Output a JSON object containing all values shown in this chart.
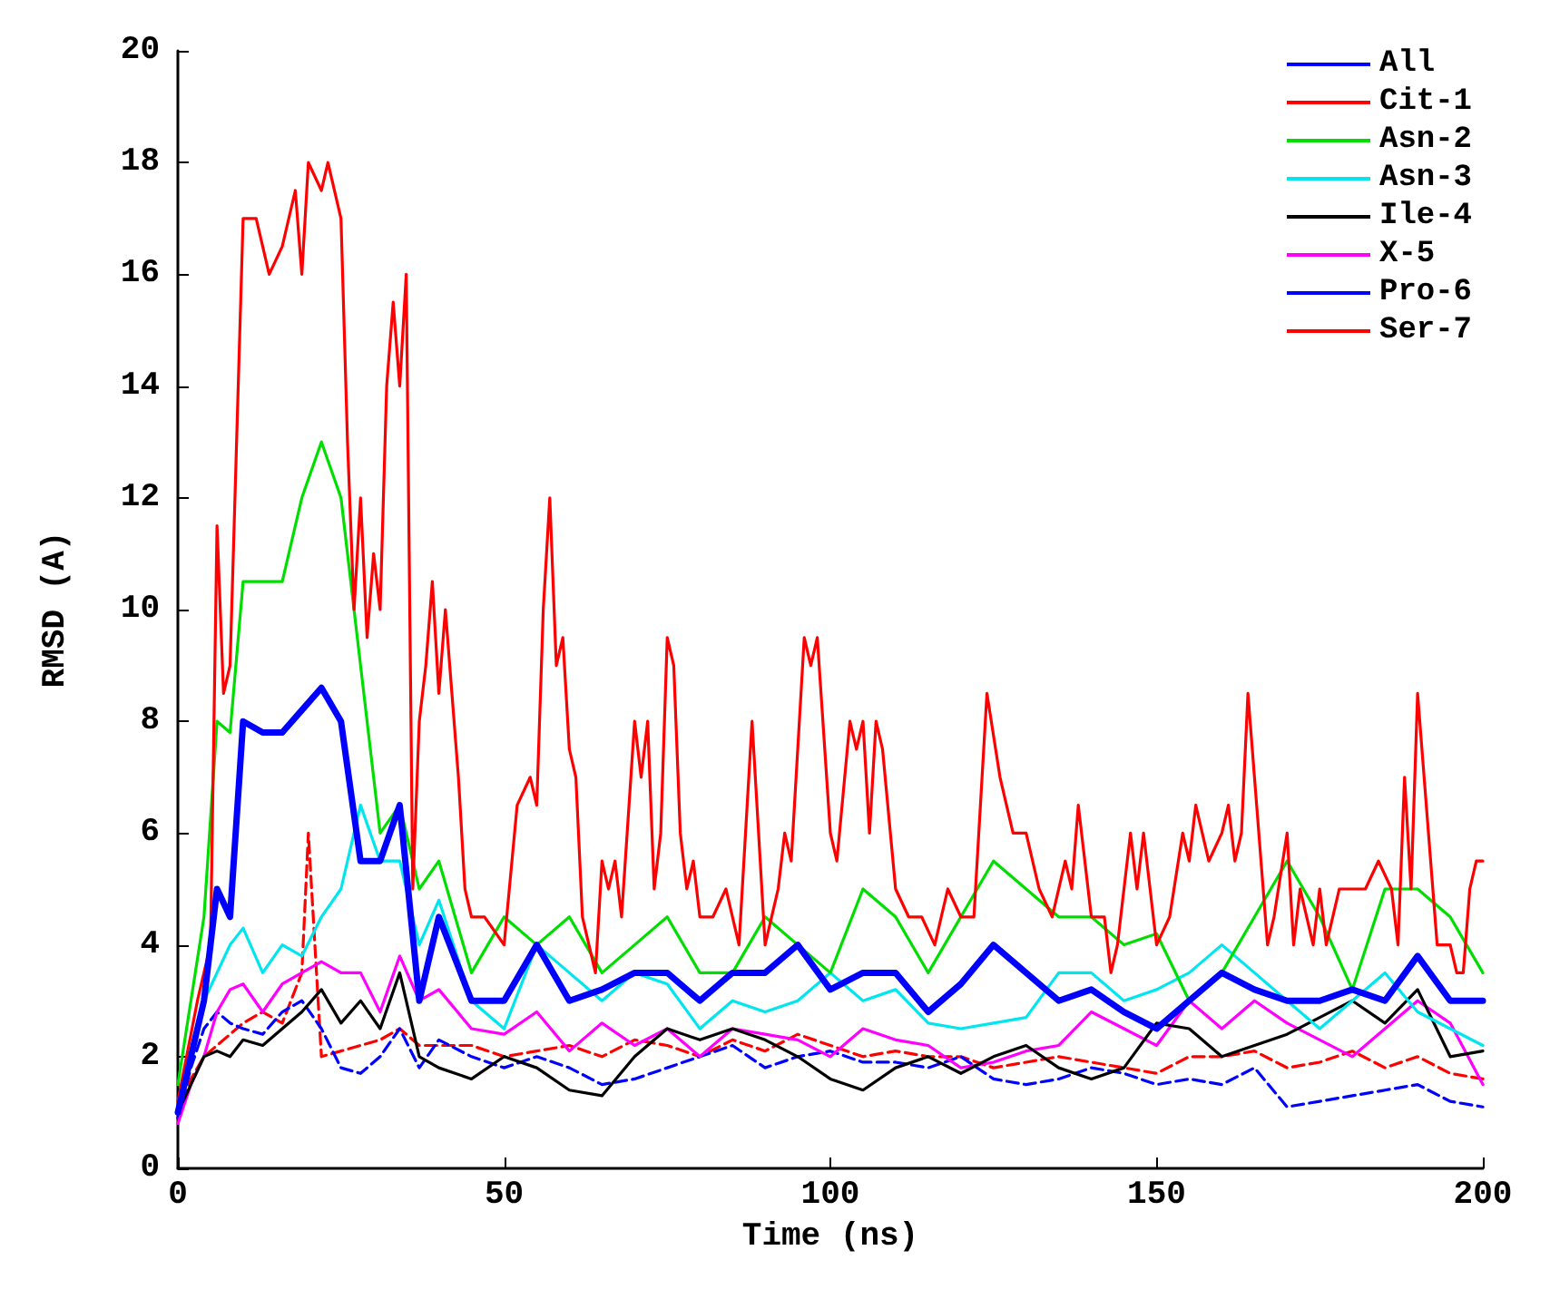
{
  "chart_data": {
    "type": "line",
    "xlabel": "Time (ns)",
    "ylabel": "RMSD (A)",
    "xlim": [
      0,
      200
    ],
    "xticks": [
      0,
      50,
      100,
      150,
      200
    ],
    "ylim": [
      0,
      20
    ],
    "yticks": [
      0,
      2,
      4,
      6,
      8,
      10,
      12,
      14,
      16,
      18,
      20
    ],
    "grid": false,
    "legend": "top right",
    "marker": "none",
    "x": [
      0,
      2,
      4,
      6,
      8,
      10,
      13,
      16,
      19,
      22,
      25,
      28,
      31,
      34,
      37,
      40,
      45,
      50,
      55,
      60,
      65,
      70,
      75,
      80,
      85,
      90,
      95,
      100,
      105,
      110,
      115,
      120,
      125,
      130,
      135,
      140,
      145,
      150,
      155,
      160,
      165,
      170,
      175,
      180,
      185,
      190,
      195,
      200
    ],
    "series": [
      {
        "name": "All",
        "color": "#0000ff",
        "line_style": "solid",
        "values": [
          1,
          2,
          3,
          5,
          4.5,
          8,
          7.8,
          7.8,
          8.2,
          8.6,
          8,
          5.5,
          5.5,
          6.5,
          3,
          4.5,
          3,
          3,
          4,
          3,
          3.2,
          3.5,
          3.5,
          3,
          3.5,
          3.5,
          4,
          3.2,
          3.5,
          3.5,
          2.8,
          3.3,
          4,
          3.5,
          3,
          3.2,
          2.8,
          2.5,
          3,
          3.5,
          3.2,
          3,
          3,
          3.2,
          3,
          3.8,
          3,
          3
        ]
      },
      {
        "name": "Cit-1",
        "color": "#ff0000",
        "line_style": "solid",
        "x": [
          0,
          3,
          5,
          6,
          7,
          8,
          10,
          12,
          14,
          16,
          18,
          19,
          20,
          22,
          23,
          25,
          26,
          27,
          28,
          29,
          30,
          31,
          32,
          33,
          34,
          35,
          36,
          37,
          38,
          39,
          40,
          41,
          43,
          44,
          45,
          47,
          50,
          52,
          54,
          55,
          56,
          57,
          58,
          59,
          60,
          61,
          62,
          64,
          65,
          66,
          67,
          68,
          70,
          71,
          72,
          73,
          74,
          75,
          76,
          77,
          78,
          79,
          80,
          82,
          84,
          86,
          88,
          90,
          92,
          93,
          94,
          96,
          97,
          98,
          100,
          101,
          103,
          104,
          105,
          106,
          107,
          108,
          110,
          112,
          114,
          116,
          118,
          120,
          122,
          124,
          126,
          128,
          130,
          132,
          134,
          136,
          137,
          138,
          140,
          142,
          143,
          144,
          146,
          147,
          148,
          150,
          152,
          154,
          155,
          156,
          158,
          160,
          161,
          162,
          163,
          164,
          165,
          166,
          167,
          168,
          170,
          171,
          172,
          174,
          175,
          176,
          178,
          180,
          182,
          184,
          186,
          187,
          188,
          189,
          190,
          191,
          192,
          193,
          195,
          196,
          197,
          198,
          199,
          200
        ],
        "values": [
          1.2,
          3,
          4,
          11.5,
          8.5,
          9,
          17,
          17,
          16,
          16.5,
          17.5,
          16,
          18,
          17.5,
          18,
          17,
          13,
          10,
          12,
          9.5,
          11,
          10,
          14,
          15.5,
          14,
          16,
          5,
          8,
          9,
          10.5,
          8.5,
          10,
          7,
          5,
          4.5,
          4.5,
          4,
          6.5,
          7,
          6.5,
          10,
          12,
          9,
          9.5,
          7.5,
          7,
          4.5,
          3.5,
          5.5,
          5,
          5.5,
          4.5,
          8,
          7,
          8,
          5,
          6,
          9.5,
          9,
          6,
          5,
          5.5,
          4.5,
          4.5,
          5,
          4,
          8,
          4,
          5,
          6,
          5.5,
          9.5,
          9,
          9.5,
          6,
          5.5,
          8,
          7.5,
          8,
          6,
          8,
          7.5,
          5,
          4.5,
          4.5,
          4,
          5,
          4.5,
          4.5,
          8.5,
          7,
          6,
          6,
          5,
          4.5,
          5.5,
          5,
          6.5,
          4.5,
          4.5,
          3.5,
          4,
          6,
          5,
          6,
          4,
          4.5,
          6,
          5.5,
          6.5,
          5.5,
          6,
          6.5,
          5.5,
          6,
          8.5,
          7,
          5.5,
          4,
          4.5,
          6,
          4,
          5,
          4,
          5,
          4,
          5,
          5,
          5,
          5.5,
          5,
          4,
          7,
          5,
          8.5,
          7,
          5.5,
          4,
          4,
          3.5,
          3.5,
          5,
          5.5,
          5.5
        ]
      },
      {
        "name": "Asn-2",
        "color": "#00dd00",
        "line_style": "solid",
        "values": [
          1.5,
          3,
          4.5,
          8,
          7.8,
          10.5,
          10.5,
          10.5,
          12,
          13,
          12,
          9,
          6,
          6.5,
          5,
          5.5,
          3.5,
          4.5,
          4,
          4.5,
          3.5,
          4,
          4.5,
          3.5,
          3.5,
          4.5,
          4,
          3.5,
          5,
          4.5,
          3.5,
          4.5,
          5.5,
          5,
          4.5,
          4.5,
          4,
          4.2,
          3,
          3.5,
          4.5,
          5.5,
          4.5,
          3.2,
          5,
          5,
          4.5,
          3.5
        ]
      },
      {
        "name": "Asn-3",
        "color": "#00e5ee",
        "line_style": "solid",
        "values": [
          1,
          2,
          3,
          3.5,
          4,
          4.3,
          3.5,
          4,
          3.8,
          4.5,
          5,
          6.5,
          5.5,
          5.5,
          4,
          4.8,
          3,
          2.5,
          4,
          3.5,
          3,
          3.5,
          3.3,
          2.5,
          3,
          2.8,
          3,
          3.5,
          3,
          3.2,
          2.6,
          2.5,
          2.6,
          2.7,
          3.5,
          3.5,
          3,
          3.2,
          3.5,
          4,
          3.5,
          3,
          2.5,
          3,
          3.5,
          2.8,
          2.5,
          2.2
        ]
      },
      {
        "name": "Ile-4",
        "color": "#000000",
        "line_style": "solid",
        "values": [
          1,
          1.5,
          2,
          2.1,
          2,
          2.3,
          2.2,
          2.5,
          2.8,
          3.2,
          2.6,
          3,
          2.5,
          3.5,
          2,
          1.8,
          1.6,
          2,
          1.8,
          1.4,
          1.3,
          2,
          2.5,
          2.3,
          2.5,
          2.3,
          2,
          1.6,
          1.4,
          1.8,
          2,
          1.7,
          2,
          2.2,
          1.8,
          1.6,
          1.8,
          2.6,
          2.5,
          2,
          2.2,
          2.4,
          2.7,
          3,
          2.6,
          3.2,
          2,
          2.1
        ]
      },
      {
        "name": "X-5",
        "color": "#ff00ff",
        "line_style": "solid",
        "values": [
          0.8,
          1.5,
          2,
          2.8,
          3.2,
          3.3,
          2.8,
          3.3,
          3.5,
          3.7,
          3.5,
          3.5,
          2.8,
          3.8,
          3,
          3.2,
          2.5,
          2.4,
          2.8,
          2.1,
          2.6,
          2.2,
          2.5,
          2,
          2.5,
          2.4,
          2.3,
          2,
          2.5,
          2.3,
          2.2,
          1.8,
          1.9,
          2.1,
          2.2,
          2.8,
          2.5,
          2.2,
          3,
          2.5,
          3,
          2.6,
          2.3,
          2,
          2.5,
          3,
          2.6,
          1.5
        ]
      },
      {
        "name": "Pro-6",
        "color": "#0000ff",
        "line_style": "dashed",
        "values": [
          0.9,
          1.8,
          2.5,
          2.8,
          2.6,
          2.5,
          2.4,
          2.8,
          3,
          2.5,
          1.8,
          1.7,
          2,
          2.5,
          1.8,
          2.3,
          2,
          1.8,
          2,
          1.8,
          1.5,
          1.6,
          1.8,
          2,
          2.2,
          1.8,
          2,
          2.1,
          1.9,
          1.9,
          1.8,
          2,
          1.6,
          1.5,
          1.6,
          1.8,
          1.7,
          1.5,
          1.6,
          1.5,
          1.8,
          1.1,
          1.2,
          1.3,
          1.4,
          1.5,
          1.2,
          1.1
        ]
      },
      {
        "name": "Ser-7",
        "color": "#ff0000",
        "line_style": "dashed",
        "x": [
          0,
          2,
          4,
          6,
          8,
          10,
          13,
          16,
          19,
          20,
          22,
          25,
          28,
          31,
          34,
          37,
          40,
          45,
          50,
          55,
          60,
          65,
          70,
          75,
          80,
          85,
          90,
          95,
          100,
          105,
          110,
          115,
          120,
          125,
          130,
          135,
          140,
          145,
          150,
          155,
          160,
          165,
          170,
          175,
          180,
          185,
          190,
          195,
          200
        ],
        "values": [
          0.9,
          1.6,
          2,
          2.2,
          2.4,
          2.6,
          2.8,
          2.6,
          3.5,
          6,
          2,
          2.1,
          2.2,
          2.3,
          2.5,
          2.2,
          2.2,
          2.2,
          2,
          2.1,
          2.2,
          2,
          2.3,
          2.2,
          2,
          2.3,
          2.1,
          2.4,
          2.2,
          2,
          2.1,
          2,
          2,
          1.8,
          1.9,
          2,
          1.9,
          1.8,
          1.7,
          2,
          2,
          2.1,
          1.8,
          1.9,
          2.1,
          1.8,
          2,
          1.7,
          1.6
        ]
      }
    ]
  }
}
